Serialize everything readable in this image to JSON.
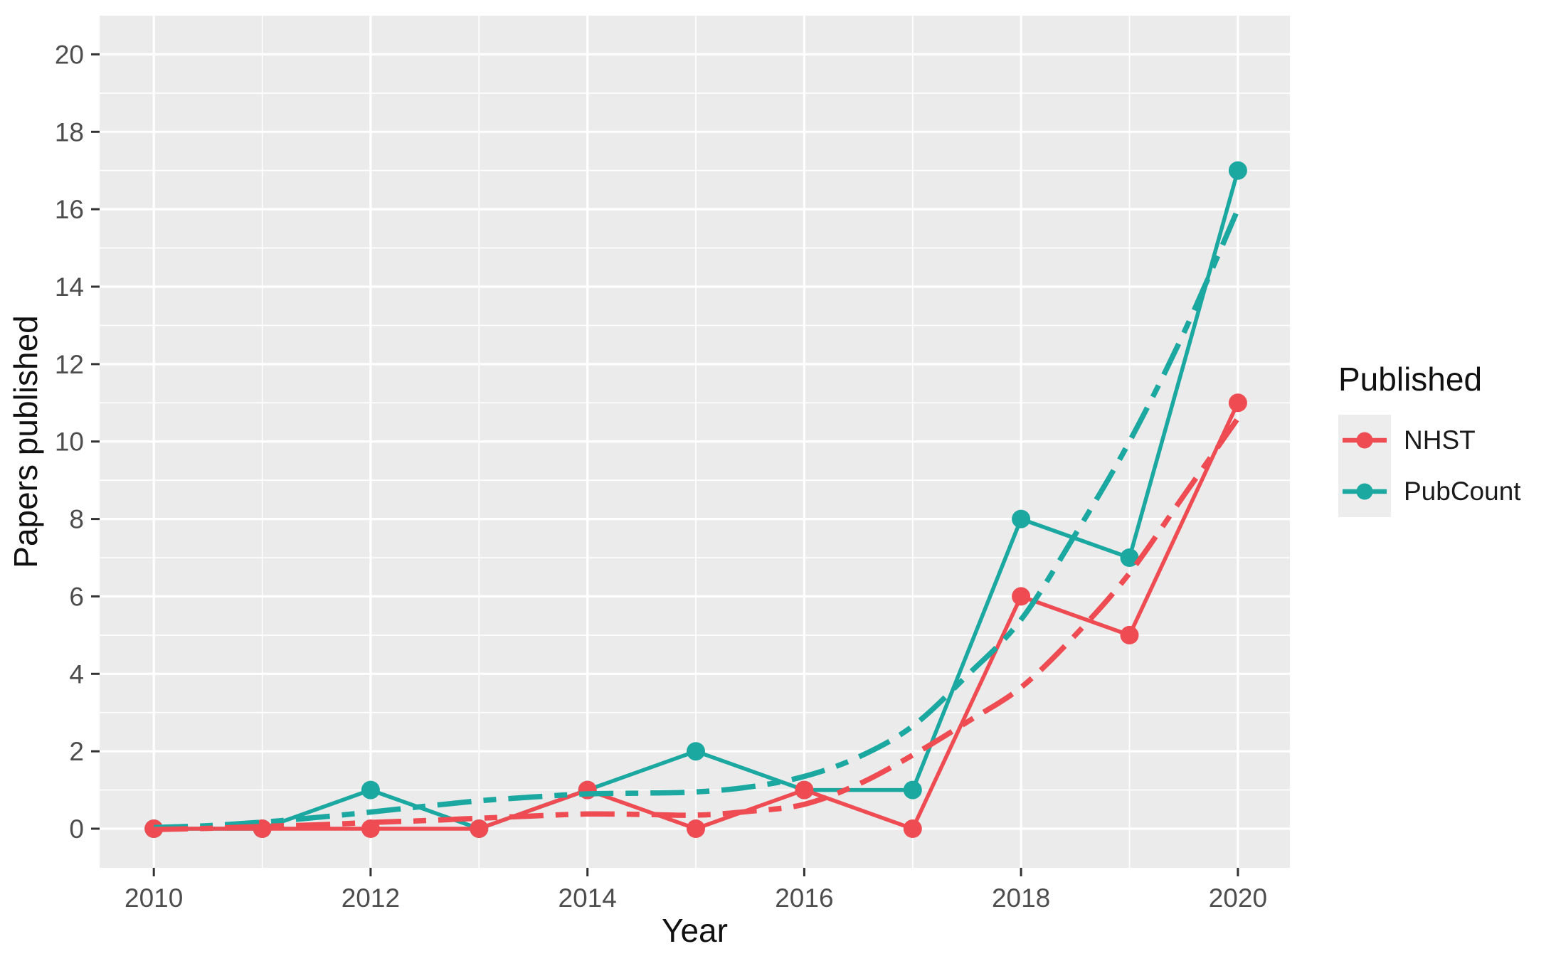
{
  "chart_data": {
    "type": "line",
    "title": "",
    "xlabel": "Year",
    "ylabel": "Papers published",
    "x": [
      2010,
      2011,
      2012,
      2013,
      2014,
      2015,
      2016,
      2017,
      2018,
      2019,
      2020
    ],
    "series": [
      {
        "name": "NHST",
        "color": "#ee4c52",
        "values": [
          0,
          0,
          0,
          0,
          1,
          0,
          1,
          0,
          6,
          5,
          11
        ]
      },
      {
        "name": "PubCount",
        "color": "#1ba8a1",
        "values": [
          0,
          0,
          1,
          0,
          1,
          2,
          1,
          1,
          8,
          7,
          17
        ]
      }
    ],
    "smooths": [
      {
        "name": "NHST-trend",
        "color": "#ee4c52",
        "x": [
          2010,
          2010.5,
          2011,
          2011.5,
          2012,
          2012.5,
          2013,
          2013.5,
          2014,
          2014.5,
          2015,
          2015.5,
          2016,
          2016.5,
          2017,
          2017.5,
          2018,
          2018.5,
          2019,
          2019.5,
          2020
        ],
        "values": [
          -0.02,
          0.01,
          0.06,
          0.1,
          0.16,
          0.21,
          0.27,
          0.33,
          0.38,
          0.37,
          0.35,
          0.45,
          0.63,
          1.15,
          1.9,
          2.75,
          3.65,
          5.0,
          6.6,
          8.6,
          10.6
        ]
      },
      {
        "name": "PubCount-trend",
        "color": "#1ba8a1",
        "x": [
          2010,
          2010.5,
          2011,
          2011.5,
          2012,
          2012.5,
          2013,
          2013.5,
          2014,
          2014.5,
          2015,
          2015.5,
          2016,
          2016.5,
          2017,
          2017.5,
          2018,
          2018.5,
          2019,
          2019.5,
          2020
        ],
        "values": [
          0.03,
          0.08,
          0.17,
          0.29,
          0.43,
          0.58,
          0.72,
          0.82,
          0.9,
          0.92,
          0.95,
          1.08,
          1.35,
          1.85,
          2.65,
          3.95,
          5.4,
          7.6,
          10.0,
          12.8,
          16.0
        ]
      }
    ],
    "xlim": [
      2009.5,
      2020.48
    ],
    "ylim": [
      -1.01,
      21.0
    ],
    "xticks": {
      "major": [
        2010,
        2012,
        2014,
        2016,
        2018,
        2020
      ],
      "minor": [
        2011,
        2013,
        2015,
        2017,
        2019
      ],
      "labels": [
        "2010",
        "2012",
        "2014",
        "2016",
        "2018",
        "2020"
      ]
    },
    "yticks": {
      "major": [
        0,
        2,
        4,
        6,
        8,
        10,
        12,
        14,
        16,
        18,
        20
      ],
      "minor": [
        1,
        3,
        5,
        7,
        9,
        11,
        13,
        15,
        17,
        19
      ],
      "labels": [
        "0",
        "2",
        "4",
        "6",
        "8",
        "10",
        "12",
        "14",
        "16",
        "18",
        "20"
      ]
    },
    "legend": {
      "title": "Published",
      "position": "right",
      "items": [
        {
          "label": "NHST",
          "color": "#ee4c52"
        },
        {
          "label": "PubCount",
          "color": "#1ba8a1"
        }
      ]
    },
    "grid": true,
    "colors": {
      "panel_bg": "#ebebeb",
      "grid": "#ffffff",
      "tick_mark": "#333333",
      "tick_label": "#4d4d4d",
      "axis_title": "#111111",
      "legend_key_bg": "#ededed"
    }
  }
}
